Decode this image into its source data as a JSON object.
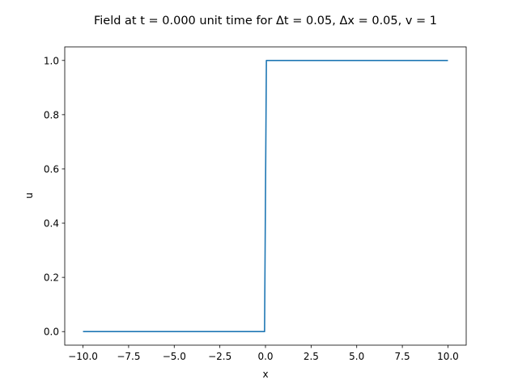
{
  "chart_data": {
    "type": "line",
    "title": "Field at t = 0.000 unit time for Δt = 0.05, Δx = 0.05,  v = 1",
    "xlabel": "x",
    "ylabel": "u",
    "xlim": [
      -11.0,
      11.0
    ],
    "ylim": [
      -0.05,
      1.05
    ],
    "xticks": [
      -10.0,
      -7.5,
      -5.0,
      -2.5,
      0.0,
      2.5,
      5.0,
      7.5,
      10.0
    ],
    "xtick_labels": [
      "−10.0",
      "−7.5",
      "−5.0",
      "−2.5",
      "0.0",
      "2.5",
      "5.0",
      "7.5",
      "10.0"
    ],
    "yticks": [
      0.0,
      0.2,
      0.4,
      0.6,
      0.8,
      1.0
    ],
    "ytick_labels": [
      "0.0",
      "0.2",
      "0.4",
      "0.6",
      "0.8",
      "1.0"
    ],
    "grid": false,
    "series": [
      {
        "color": "#1f77b4",
        "x": [
          -10.0,
          -0.05,
          0.05,
          10.0
        ],
        "y": [
          0.0,
          0.0,
          1.0,
          1.0
        ]
      }
    ]
  }
}
